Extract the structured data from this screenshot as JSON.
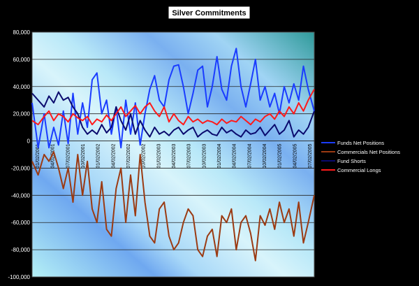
{
  "chart_data": {
    "type": "line",
    "title": "Silver Commitments",
    "xlabel": "",
    "ylabel": "",
    "ylim": [
      -100000,
      80000
    ],
    "y_ticks": [
      "80,000",
      "60,000",
      "40,000",
      "20,000",
      "0",
      "-20,000",
      "-40,000",
      "-60,000",
      "-80,000",
      "-100,000"
    ],
    "x_ticks": [
      "01/02/2001",
      "04/02/2001",
      "07/02/2001",
      "10/02/2001",
      "01/02/2002",
      "04/02/2002",
      "07/02/2002",
      "10/02/2002",
      "01/02/2003",
      "04/02/2003",
      "07/02/2003",
      "10/02/2003",
      "01/02/2004",
      "04/02/2004",
      "07/02/2004",
      "10/02/2004",
      "01/02/2005",
      "04/02/2005",
      "07/02/2005"
    ],
    "grid": "horizontal",
    "legend_position": "right",
    "x_range": [
      0,
      235
    ],
    "series": [
      {
        "name": "Funds Net Positions",
        "color": "#1a3cff",
        "x": [
          0,
          5,
          10,
          14,
          18,
          22,
          26,
          30,
          34,
          38,
          42,
          46,
          50,
          54,
          58,
          62,
          66,
          70,
          74,
          78,
          82,
          86,
          90,
          94,
          98,
          102,
          106,
          110,
          114,
          118,
          122,
          126,
          130,
          134,
          138,
          142,
          146,
          150,
          154,
          158,
          162,
          166,
          170,
          174,
          178,
          182,
          186,
          190,
          194,
          198,
          202,
          206,
          210,
          214,
          218,
          222,
          226,
          230,
          235
        ],
        "values": [
          28000,
          -5000,
          20000,
          -5000,
          10000,
          -3000,
          22000,
          -2000,
          35000,
          5000,
          28000,
          10000,
          45000,
          50000,
          20000,
          30000,
          5000,
          25000,
          -5000,
          30000,
          5000,
          28000,
          -3000,
          20000,
          38000,
          48000,
          30000,
          25000,
          45000,
          55000,
          56000,
          40000,
          20000,
          35000,
          52000,
          55000,
          25000,
          40000,
          62000,
          38000,
          30000,
          55000,
          68000,
          40000,
          25000,
          42000,
          60000,
          30000,
          40000,
          25000,
          35000,
          20000,
          40000,
          28000,
          42000,
          30000,
          55000,
          38000,
          22000
        ]
      },
      {
        "name": "Commercials Net Positions",
        "color": "#9b3a12",
        "x": [
          0,
          5,
          10,
          14,
          18,
          22,
          26,
          30,
          34,
          38,
          42,
          46,
          50,
          54,
          58,
          62,
          66,
          70,
          74,
          78,
          82,
          86,
          90,
          94,
          98,
          102,
          106,
          110,
          114,
          118,
          122,
          126,
          130,
          134,
          138,
          142,
          146,
          150,
          154,
          158,
          162,
          166,
          170,
          174,
          178,
          182,
          186,
          190,
          194,
          198,
          202,
          206,
          210,
          214,
          218,
          222,
          226,
          230,
          235
        ],
        "values": [
          -15000,
          -25000,
          -10000,
          -15000,
          -8000,
          -20000,
          -35000,
          -20000,
          -45000,
          -10000,
          -40000,
          -15000,
          -50000,
          -60000,
          -30000,
          -65000,
          -70000,
          -35000,
          -20000,
          -60000,
          -25000,
          -55000,
          -10000,
          -45000,
          -70000,
          -75000,
          -50000,
          -45000,
          -70000,
          -80000,
          -75000,
          -60000,
          -50000,
          -55000,
          -80000,
          -85000,
          -70000,
          -65000,
          -85000,
          -55000,
          -60000,
          -50000,
          -80000,
          -60000,
          -55000,
          -68000,
          -88000,
          -55000,
          -62000,
          -50000,
          -65000,
          -45000,
          -60000,
          -50000,
          -70000,
          -45000,
          -75000,
          -60000,
          -40000
        ]
      },
      {
        "name": "Fund Shorts",
        "color": "#0a0a6e",
        "x": [
          0,
          5,
          10,
          14,
          18,
          22,
          26,
          30,
          34,
          38,
          42,
          46,
          50,
          54,
          58,
          62,
          66,
          70,
          74,
          78,
          82,
          86,
          90,
          94,
          98,
          102,
          106,
          110,
          114,
          118,
          122,
          126,
          130,
          134,
          138,
          142,
          146,
          150,
          154,
          158,
          162,
          166,
          170,
          174,
          178,
          182,
          186,
          190,
          194,
          198,
          202,
          206,
          210,
          214,
          218,
          222,
          226,
          230,
          235
        ],
        "values": [
          35000,
          30000,
          25000,
          33000,
          28000,
          36000,
          30000,
          32000,
          25000,
          20000,
          10000,
          5000,
          8000,
          5000,
          12000,
          6000,
          10000,
          25000,
          15000,
          8000,
          20000,
          5000,
          15000,
          8000,
          3000,
          10000,
          5000,
          7000,
          4000,
          8000,
          10000,
          5000,
          8000,
          10000,
          3000,
          6000,
          8000,
          5000,
          4000,
          10000,
          6000,
          8000,
          5000,
          3000,
          8000,
          5000,
          6000,
          10000,
          4000,
          8000,
          12000,
          5000,
          8000,
          15000,
          3000,
          8000,
          5000,
          10000,
          22000
        ]
      },
      {
        "name": "Commercial Longs",
        "color": "#ff1a1a",
        "x": [
          0,
          5,
          10,
          14,
          18,
          22,
          26,
          30,
          34,
          38,
          42,
          46,
          50,
          54,
          58,
          62,
          66,
          70,
          74,
          78,
          82,
          86,
          90,
          94,
          98,
          102,
          106,
          110,
          114,
          118,
          122,
          126,
          130,
          134,
          138,
          142,
          146,
          150,
          154,
          158,
          162,
          166,
          170,
          174,
          178,
          182,
          186,
          190,
          194,
          198,
          202,
          206,
          210,
          214,
          218,
          222,
          226,
          230,
          235
        ],
        "values": [
          15000,
          12000,
          18000,
          22000,
          15000,
          20000,
          18000,
          14000,
          20000,
          17000,
          15000,
          18000,
          12000,
          16000,
          14000,
          19000,
          15000,
          20000,
          25000,
          18000,
          22000,
          26000,
          20000,
          25000,
          28000,
          22000,
          18000,
          25000,
          14000,
          20000,
          15000,
          12000,
          18000,
          14000,
          16000,
          13000,
          15000,
          14000,
          12000,
          16000,
          13000,
          15000,
          14000,
          18000,
          15000,
          12000,
          16000,
          14000,
          18000,
          20000,
          16000,
          22000,
          18000,
          25000,
          20000,
          28000,
          22000,
          30000,
          38000
        ]
      }
    ]
  }
}
